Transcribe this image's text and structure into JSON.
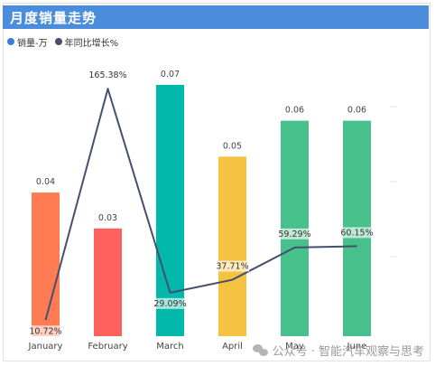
{
  "header": {
    "title": "月度销量走势"
  },
  "legend": [
    {
      "label": "销量-万",
      "color": "#3b7dd8"
    },
    {
      "label": "年同比增长%",
      "color": "#44506e"
    }
  ],
  "chart_data": {
    "type": "bar",
    "categories": [
      "January",
      "February",
      "March",
      "April",
      "May",
      "June"
    ],
    "series": [
      {
        "name": "销量-万",
        "values": [
          0.04,
          0.03,
          0.07,
          0.05,
          0.06,
          0.06
        ],
        "value_labels": [
          "0.04",
          "0.03",
          "0.07",
          "0.05",
          "0.06",
          "0.06"
        ],
        "colors": [
          "#ff7b52",
          "#fd625e",
          "#01b8aa",
          "#f5c242",
          "#48c08b",
          "#48c08b"
        ]
      },
      {
        "name": "年同比增长%",
        "type": "line",
        "color": "#44506e",
        "values": [
          10.72,
          165.38,
          29.09,
          37.71,
          59.29,
          60.15
        ],
        "value_labels": [
          "10.72%",
          "165.38%",
          "29.09%",
          "37.71%",
          "59.29%",
          "60.15%"
        ]
      }
    ],
    "bar_ylim": [
      0,
      0.075
    ],
    "line_ylim": [
      0,
      180
    ]
  },
  "watermark": {
    "text": "公众号 · 智能汽车观察与思考",
    "icon": "wechat-icon"
  }
}
